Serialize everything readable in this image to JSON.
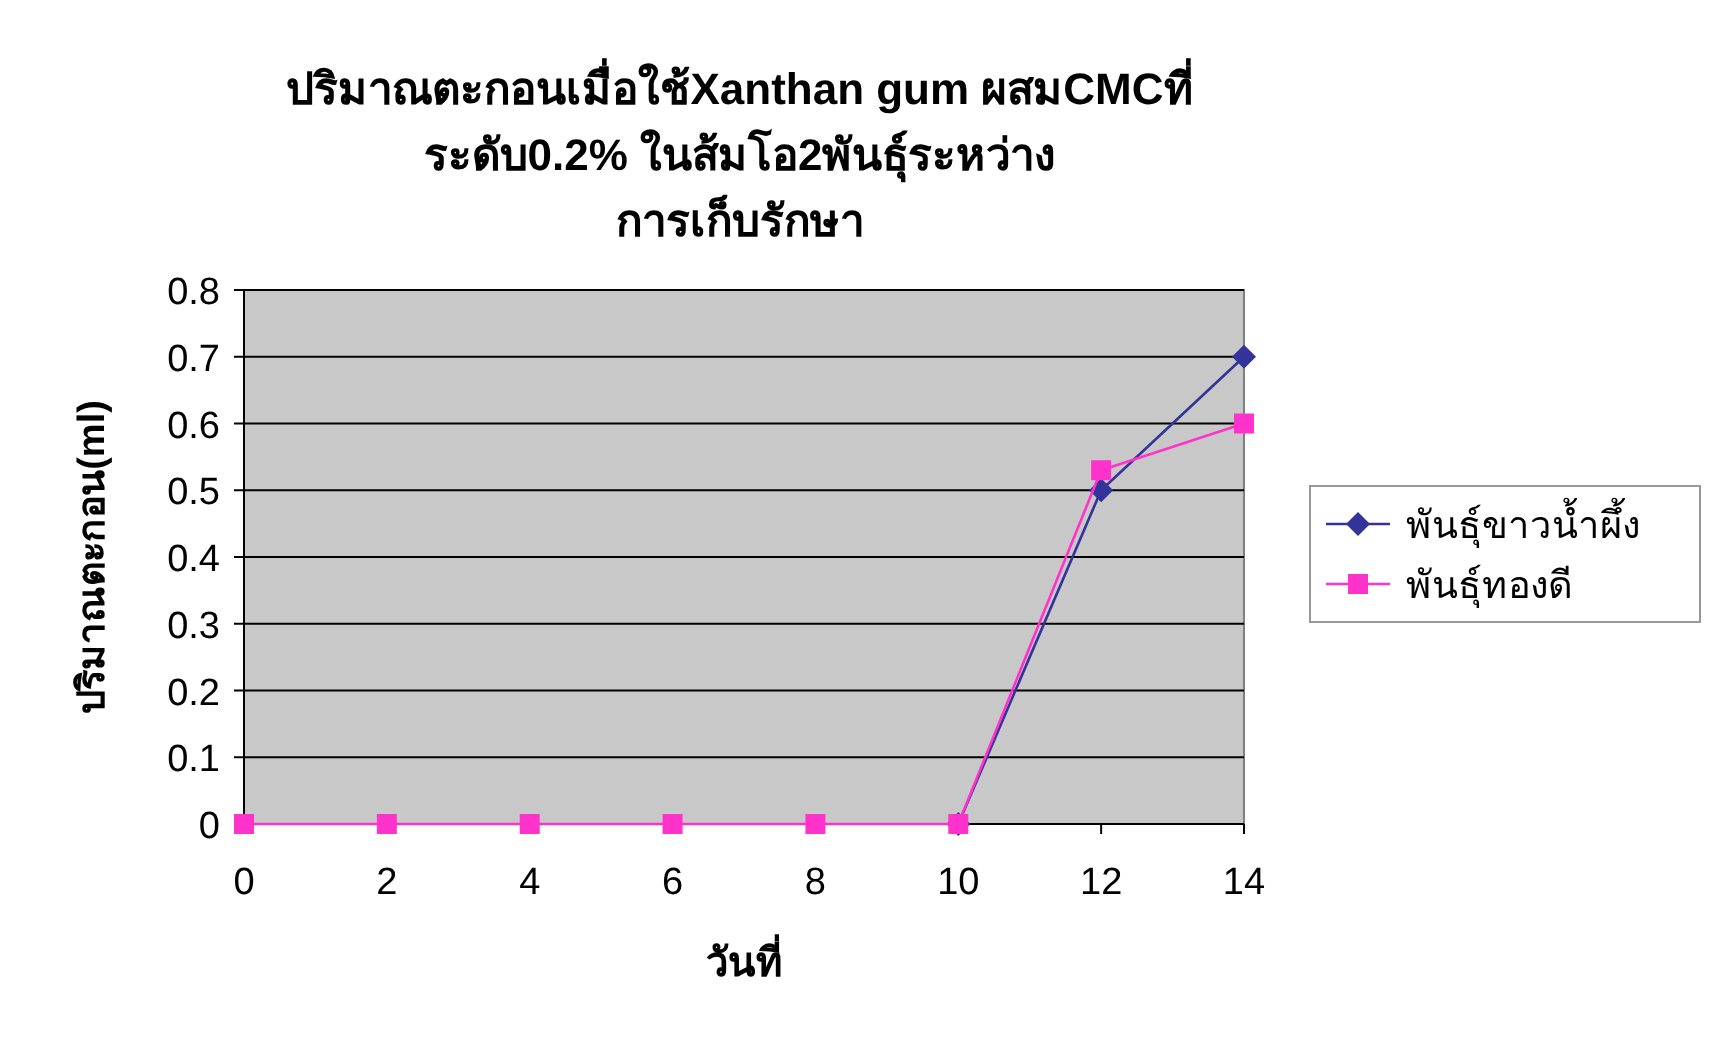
{
  "chart_data": {
    "type": "line",
    "title": "ปริมาณตะกอนเมื่อใช้Xanthan gum ผสมCMCที่\nระดับ0.2% ในส้มโอ2พันธุ์ระหว่าง\nการเก็บรักษา",
    "xlabel": "วันที่",
    "ylabel": "ปริมาณตะกอน(ml)",
    "x": [
      0,
      2,
      4,
      6,
      8,
      10,
      12,
      14
    ],
    "series": [
      {
        "name": "พันธุ์ขาวน้ำผึ้ง",
        "color": "#333399",
        "marker": "diamond",
        "values": [
          null,
          null,
          null,
          null,
          null,
          0,
          0.5,
          0.7
        ]
      },
      {
        "name": "พันธุ์ทองดี",
        "color": "#ff33cc",
        "marker": "square",
        "values": [
          0,
          0,
          0,
          0,
          0,
          0,
          0.53,
          0.6
        ]
      }
    ],
    "xlim": [
      0,
      14
    ],
    "xticks": [
      0,
      2,
      4,
      6,
      8,
      10,
      12,
      14
    ],
    "ylim": [
      0,
      0.8
    ],
    "yticks": [
      0,
      0.1,
      0.2,
      0.3,
      0.4,
      0.5,
      0.6,
      0.7,
      0.8
    ],
    "grid": "y",
    "legend": "right",
    "line_style": "solid"
  }
}
